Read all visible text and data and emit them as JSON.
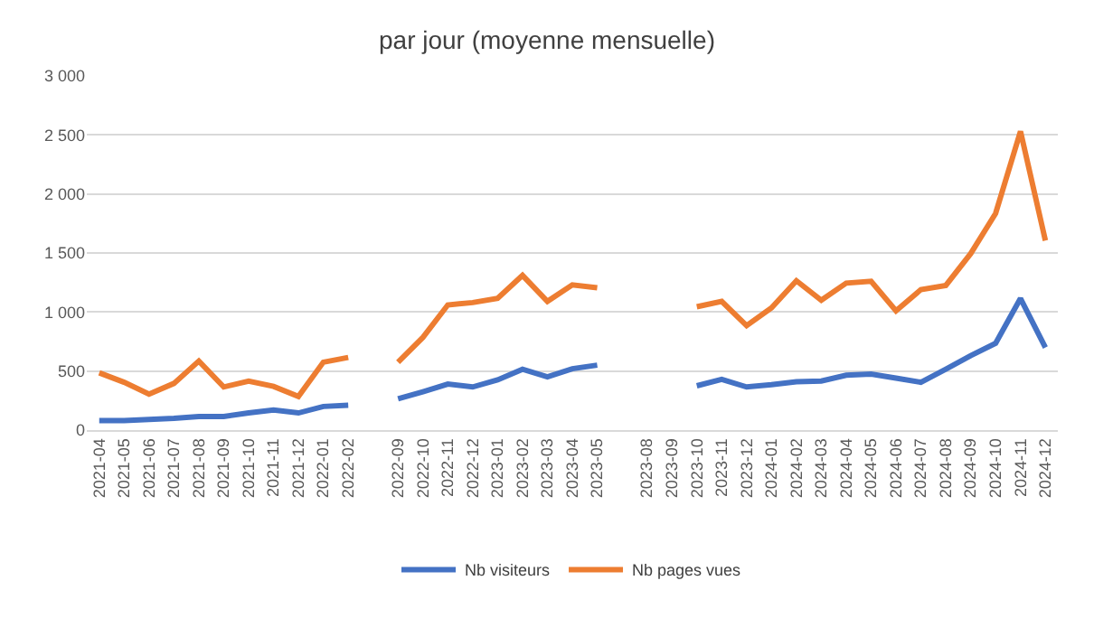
{
  "chart_data": {
    "type": "line",
    "title": "par jour (moyenne mensuelle)",
    "categories": [
      "2021-04",
      "2021-05",
      "2021-06",
      "2021-07",
      "2021-08",
      "2021-09",
      "2021-10",
      "2021-11",
      "2021-12",
      "2022-01",
      "2022-02",
      null,
      "2022-09",
      "2022-10",
      "2022-11",
      "2022-12",
      "2023-01",
      "2023-02",
      "2023-03",
      "2023-04",
      "2023-05",
      null,
      "2023-08",
      "2023-09",
      "2023-10",
      "2023-11",
      "2023-12",
      "2024-01",
      "2024-02",
      "2024-03",
      "2024-04",
      "2024-05",
      "2024-06",
      "2024-07",
      "2024-08",
      "2024-09",
      "2024-10",
      "2024-11",
      "2024-12"
    ],
    "series": [
      {
        "name": "Nb visiteurs",
        "color": "#4472c4",
        "values": [
          80,
          80,
          90,
          100,
          115,
          115,
          145,
          170,
          145,
          200,
          210,
          null,
          265,
          325,
          390,
          365,
          425,
          515,
          450,
          520,
          550,
          null,
          null,
          null,
          375,
          430,
          365,
          385,
          410,
          415,
          465,
          475,
          440,
          405,
          515,
          630,
          735,
          1115,
          700
        ]
      },
      {
        "name": "Nb pages vues",
        "color": "#ed7d31",
        "values": [
          485,
          405,
          305,
          395,
          585,
          365,
          415,
          370,
          285,
          575,
          615,
          null,
          575,
          785,
          1060,
          1080,
          1115,
          1310,
          1090,
          1230,
          1205,
          null,
          null,
          null,
          1045,
          1090,
          885,
          1035,
          1265,
          1100,
          1245,
          1260,
          1010,
          1190,
          1225,
          1495,
          1835,
          2530,
          1605
        ]
      }
    ],
    "ylim": [
      0,
      3000
    ],
    "yticks": [
      0,
      500,
      {
        "value": 1000,
        "label": "1 000"
      },
      {
        "value": 1500,
        "label": "1 500"
      },
      {
        "value": 2000,
        "label": "2 000"
      },
      {
        "value": 2500,
        "label": "2 500"
      },
      {
        "value": 3000,
        "label": "3 000"
      }
    ],
    "grid": "y",
    "legend": "bottom",
    "marker": "none",
    "line_style": "solid"
  }
}
